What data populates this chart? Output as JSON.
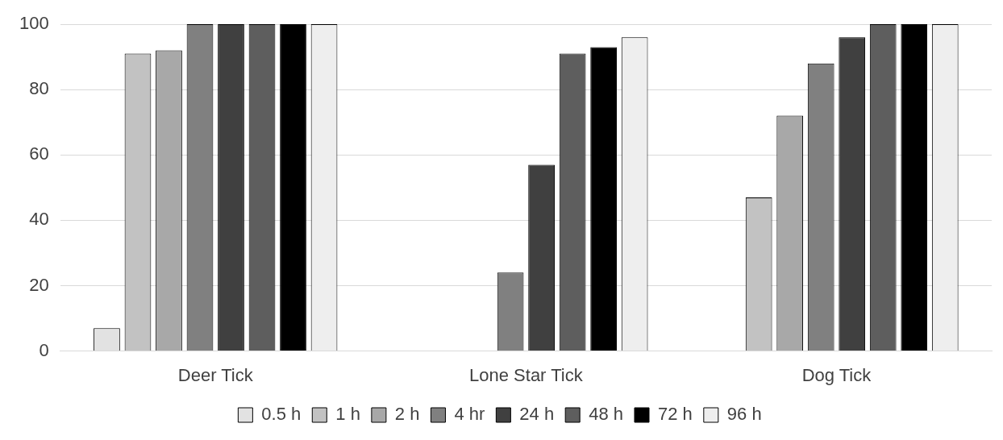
{
  "chart_data": {
    "type": "bar",
    "categories": [
      "Deer Tick",
      "Lone Star Tick",
      "Dog Tick"
    ],
    "series": [
      {
        "name": "0.5 h",
        "color": "#e2e2e2",
        "values": [
          7,
          0,
          0
        ]
      },
      {
        "name": "1 h",
        "color": "#c2c2c2",
        "values": [
          91,
          0,
          47
        ]
      },
      {
        "name": "2 h",
        "color": "#a8a8a8",
        "values": [
          92,
          0,
          72
        ]
      },
      {
        "name": "4 hr",
        "color": "#808080",
        "values": [
          100,
          24,
          88
        ]
      },
      {
        "name": "24 h",
        "color": "#404040",
        "values": [
          100,
          57,
          96
        ]
      },
      {
        "name": "48 h",
        "color": "#5e5e5e",
        "values": [
          100,
          91,
          100
        ]
      },
      {
        "name": "72 h",
        "color": "#000000",
        "values": [
          100,
          93,
          100
        ]
      },
      {
        "name": "96 h",
        "color": "#eeeeee",
        "values": [
          100,
          96,
          100
        ]
      }
    ],
    "ylim": [
      0,
      100
    ],
    "yticks": [
      0,
      20,
      40,
      60,
      80,
      100
    ],
    "grid": "y",
    "legend": "bottom"
  }
}
